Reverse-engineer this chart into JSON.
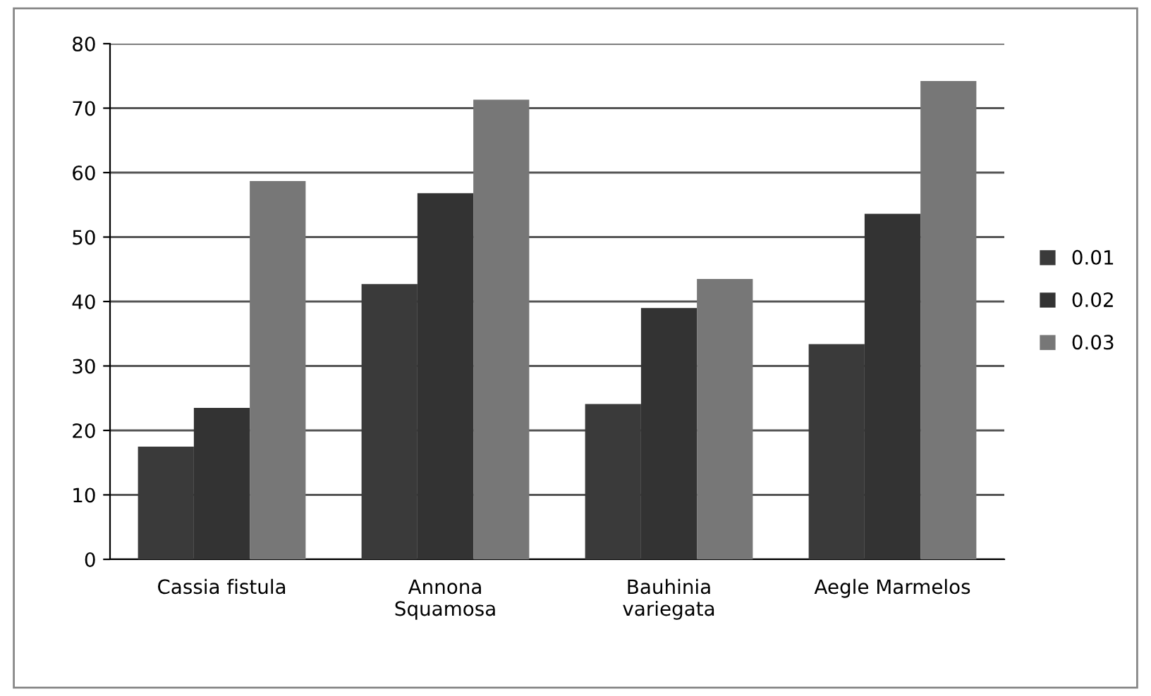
{
  "chart_data": {
    "type": "bar",
    "categories": [
      "Cassia fistula",
      "Annona\nSquamosa",
      "Bauhinia\nvariegata",
      "Aegle Marmelos"
    ],
    "series": [
      {
        "name": "0.01",
        "color": "#3a3a3a",
        "values": [
          17.5,
          42.7,
          24.1,
          33.4
        ]
      },
      {
        "name": "0.02",
        "color": "#333333",
        "values": [
          23.5,
          56.8,
          39.0,
          53.6
        ]
      },
      {
        "name": "0.03",
        "color": "#777777",
        "values": [
          58.7,
          71.3,
          43.5,
          74.2
        ]
      }
    ],
    "ylim": [
      0,
      80
    ],
    "yticks": [
      0,
      10,
      20,
      30,
      40,
      50,
      60,
      70,
      80
    ],
    "grid": "y",
    "legend": "right"
  }
}
